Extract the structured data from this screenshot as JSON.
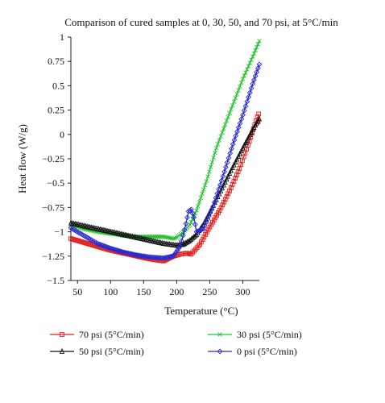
{
  "chart_data": {
    "type": "scatter",
    "title": "Comparison of cured samples at 0, 30, 50, and 70 psi, at 5°C/min",
    "xlabel": "Temperature (°C)",
    "ylabel": "Heat flow (W/g)",
    "xlim": [
      40,
      325
    ],
    "ylim": [
      -1.5,
      1
    ],
    "xticks": [
      50,
      100,
      150,
      200,
      250,
      300
    ],
    "yticks": [
      1,
      0.75,
      0.5,
      0.25,
      0,
      -0.25,
      -0.5,
      -0.75,
      -1,
      -1.25,
      -1.5
    ],
    "ytick_labels": [
      "1",
      "0.75",
      "0.5",
      "0.25",
      "0",
      "−0.25",
      "−0.5",
      "−0.75",
      "−1",
      "−1.25",
      "−1.5"
    ],
    "grid": false,
    "legend_position": "bottom",
    "series": [
      {
        "name": "70 psi (5°C/min)",
        "color": "#e0201b",
        "marker": "square",
        "x": [
          40,
          60,
          80,
          100,
          120,
          140,
          160,
          180,
          195,
          205,
          215,
          222,
          235,
          250,
          265,
          280,
          295,
          310,
          318,
          322,
          323,
          324
        ],
        "y": [
          -1.07,
          -1.11,
          -1.15,
          -1.19,
          -1.22,
          -1.25,
          -1.28,
          -1.3,
          -1.25,
          -1.23,
          -1.22,
          -1.23,
          -1.13,
          -0.95,
          -0.78,
          -0.58,
          -0.35,
          -0.07,
          0.1,
          0.18,
          0.13,
          0.21
        ]
      },
      {
        "name": "30 psi (5°C/min)",
        "color": "#22c32c",
        "marker": "x",
        "x": [
          40,
          60,
          80,
          100,
          120,
          140,
          160,
          180,
          195,
          200,
          210,
          220,
          230,
          245,
          260,
          280,
          300,
          315,
          325
        ],
        "y": [
          -0.93,
          -0.97,
          -1.0,
          -1.02,
          -1.04,
          -1.05,
          -1.05,
          -1.05,
          -1.07,
          -1.06,
          -1.0,
          -0.93,
          -0.78,
          -0.48,
          -0.14,
          0.22,
          0.57,
          0.8,
          0.96
        ]
      },
      {
        "name": "50 psi (5°C/min)",
        "color": "#111111",
        "marker": "triangle",
        "x": [
          40,
          60,
          80,
          100,
          120,
          140,
          160,
          180,
          200,
          210,
          220,
          230,
          240,
          260,
          280,
          300,
          315,
          325
        ],
        "y": [
          -0.91,
          -0.94,
          -0.97,
          -1.0,
          -1.03,
          -1.06,
          -1.09,
          -1.12,
          -1.14,
          -1.13,
          -1.09,
          -1.03,
          -0.93,
          -0.67,
          -0.4,
          -0.14,
          0.05,
          0.16
        ]
      },
      {
        "name": "0 psi (5°C/min)",
        "color": "#2b2bd0",
        "marker": "diamond",
        "x": [
          40,
          60,
          80,
          100,
          120,
          140,
          160,
          180,
          195,
          205,
          212,
          218,
          222,
          226,
          230,
          240,
          255,
          270,
          285,
          300,
          315,
          325
        ],
        "y": [
          -0.96,
          -1.04,
          -1.12,
          -1.17,
          -1.21,
          -1.24,
          -1.26,
          -1.27,
          -1.25,
          -1.15,
          -0.98,
          -0.79,
          -0.77,
          -0.85,
          -1.0,
          -0.97,
          -0.74,
          -0.43,
          -0.1,
          0.2,
          0.52,
          0.72
        ]
      }
    ]
  }
}
